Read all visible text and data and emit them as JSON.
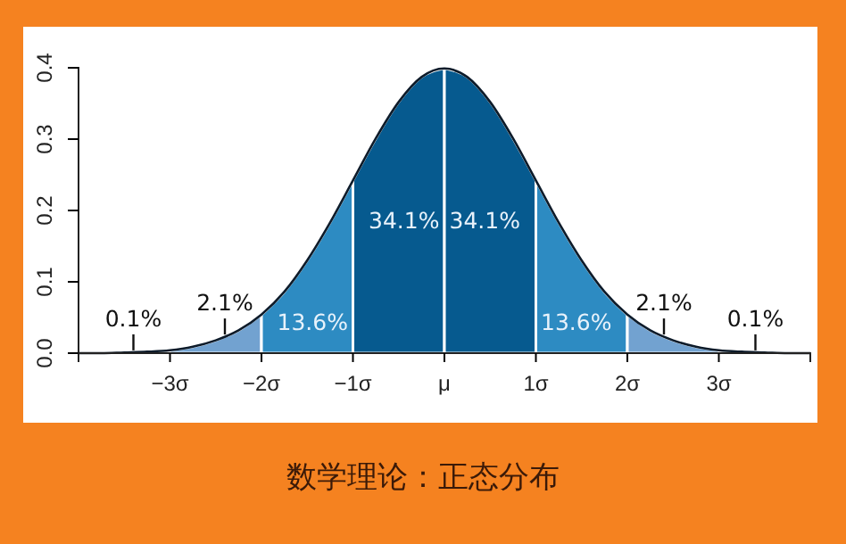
{
  "chart_data": {
    "type": "area",
    "title": "数学理论：正态分布",
    "xlim": [
      -4,
      4
    ],
    "ylim": [
      0,
      0.4
    ],
    "xticks": [
      {
        "value": -3,
        "label": "−3σ"
      },
      {
        "value": -2,
        "label": "−2σ"
      },
      {
        "value": -1,
        "label": "−1σ"
      },
      {
        "value": 0,
        "label": "μ"
      },
      {
        "value": 1,
        "label": "1σ"
      },
      {
        "value": 2,
        "label": "2σ"
      },
      {
        "value": 3,
        "label": "3σ"
      }
    ],
    "yticks": [
      {
        "value": 0,
        "label": "0.0"
      },
      {
        "value": 0.1,
        "label": "0.1"
      },
      {
        "value": 0.2,
        "label": "0.2"
      },
      {
        "value": 0.3,
        "label": "0.3"
      },
      {
        "value": 0.4,
        "label": "0.4"
      }
    ],
    "series": [
      {
        "color": "#72a2d0",
        "x": [
          -3,
          -2.75,
          -2.5,
          -2.25,
          -2
        ],
        "values": [
          0.004,
          0.009,
          0.018,
          0.032,
          0.054
        ]
      },
      {
        "color": "#2d8bc2",
        "x": [
          -2,
          -1.75,
          -1.5,
          -1.25,
          -1
        ],
        "values": [
          0.054,
          0.086,
          0.13,
          0.183,
          0.242
        ]
      },
      {
        "color": "#065a8f",
        "x": [
          -1,
          -0.75,
          -0.5,
          -0.25,
          0
        ],
        "values": [
          0.242,
          0.301,
          0.352,
          0.387,
          0.399
        ]
      },
      {
        "color": "#065a8f",
        "x": [
          0,
          0.25,
          0.5,
          0.75,
          1
        ],
        "values": [
          0.399,
          0.387,
          0.352,
          0.301,
          0.242
        ]
      },
      {
        "color": "#2d8bc2",
        "x": [
          1,
          1.25,
          1.5,
          1.75,
          2
        ],
        "values": [
          0.242,
          0.183,
          0.13,
          0.086,
          0.054
        ]
      },
      {
        "color": "#72a2d0",
        "x": [
          2,
          2.25,
          2.5,
          2.75,
          3
        ],
        "values": [
          0.054,
          0.032,
          0.018,
          0.009,
          0.004
        ]
      },
      {
        "type": "line",
        "color": "#0d1b2a",
        "x": [
          -4,
          -3.75,
          -3.5,
          -3.25,
          -3,
          -2.75,
          -2.5,
          -2.25,
          -2,
          -1.75,
          -1.5,
          -1.25,
          -1,
          -0.75,
          -0.5,
          -0.25,
          0,
          0.25,
          0.5,
          0.75,
          1,
          1.25,
          1.5,
          1.75,
          2,
          2.25,
          2.5,
          2.75,
          3,
          3.25,
          3.5,
          3.75,
          4
        ],
        "values": [
          0,
          0,
          0.001,
          0.002,
          0.004,
          0.009,
          0.018,
          0.032,
          0.054,
          0.086,
          0.13,
          0.183,
          0.242,
          0.301,
          0.352,
          0.387,
          0.399,
          0.387,
          0.352,
          0.301,
          0.242,
          0.183,
          0.13,
          0.086,
          0.054,
          0.032,
          0.018,
          0.009,
          0.004,
          0.002,
          0.001,
          0,
          0
        ]
      }
    ],
    "annotations": [
      "0.1%",
      "2.1%",
      "13.6%",
      "34.1%",
      "34.1%",
      "13.6%",
      "2.1%",
      "0.1%"
    ]
  }
}
